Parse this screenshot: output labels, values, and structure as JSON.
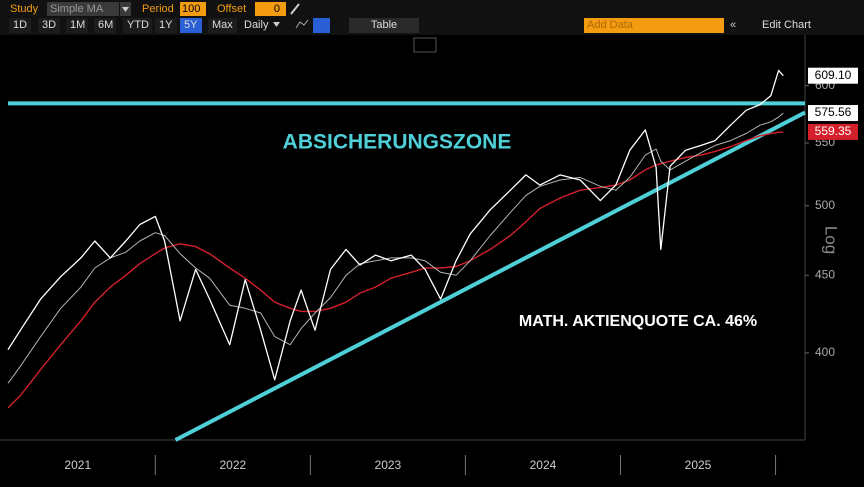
{
  "toolbar": {
    "study_label": "Study",
    "study": "Simple MA",
    "period_label": "Period",
    "period": "100",
    "offset_label": "Offset",
    "offset": "0",
    "ranges": [
      "1D",
      "3D",
      "1M",
      "6M",
      "YTD",
      "1Y",
      "5Y",
      "Max"
    ],
    "active_range": "5Y",
    "frequency": "Daily",
    "table": "Table",
    "add_data": "Add Data",
    "edit_chart": "Edit Chart"
  },
  "chart_data": {
    "type": "line",
    "log_scale": true,
    "grid": false,
    "scale_label": "Log",
    "x": [
      2021.05,
      2021.13,
      2021.26,
      2021.39,
      2021.52,
      2021.61,
      2021.71,
      2021.81,
      2021.9,
      2022.0,
      2022.06,
      2022.16,
      2022.26,
      2022.35,
      2022.48,
      2022.58,
      2022.68,
      2022.77,
      2022.87,
      2022.94,
      2023.03,
      2023.13,
      2023.23,
      2023.32,
      2023.42,
      2023.52,
      2023.65,
      2023.74,
      2023.84,
      2023.94,
      2024.03,
      2024.16,
      2024.29,
      2024.39,
      2024.48,
      2024.61,
      2024.74,
      2024.87,
      2024.97,
      2025.06,
      2025.16,
      2025.23,
      2025.26,
      2025.32,
      2025.42,
      2025.52,
      2025.61,
      2025.71,
      2025.81,
      2025.9,
      2025.97,
      2026.02,
      2026.05
    ],
    "series": [
      {
        "color": "#ffffff",
        "width": 1.3,
        "values": [
          402,
          414,
          434,
          449,
          462,
          474,
          462,
          474,
          486,
          492,
          474,
          420,
          454,
          434,
          405,
          447,
          414,
          384,
          420,
          440,
          414,
          454,
          468,
          457,
          464,
          460,
          464,
          454,
          434,
          460,
          479,
          497,
          512,
          524,
          516,
          524,
          520,
          504,
          516,
          544,
          561,
          530,
          468,
          531,
          544,
          548,
          552,
          565,
          578,
          583,
          591,
          614,
          609.1
        ]
      },
      {
        "color": "#b4b4b4",
        "width": 1,
        "values": [
          382,
          392,
          410,
          428,
          442,
          455,
          462,
          466,
          474,
          480,
          478,
          465,
          455,
          448,
          430,
          428,
          425,
          410,
          405,
          415,
          425,
          435,
          450,
          458,
          460,
          462,
          462,
          460,
          452,
          450,
          460,
          478,
          495,
          508,
          515,
          520,
          522,
          515,
          512,
          522,
          540,
          545,
          535,
          528,
          535,
          542,
          548,
          552,
          558,
          565,
          568,
          572,
          575.56
        ]
      },
      {
        "color": "#d3202b",
        "width": 1.4,
        "values": [
          368,
          375,
          390,
          405,
          420,
          432,
          442,
          450,
          458,
          465,
          469,
          472,
          470,
          465,
          455,
          448,
          440,
          432,
          428,
          426,
          426,
          428,
          432,
          438,
          442,
          448,
          452,
          455,
          455,
          456,
          460,
          468,
          478,
          488,
          498,
          506,
          512,
          514,
          516,
          520,
          528,
          532,
          533,
          535,
          538,
          540,
          543,
          547,
          552,
          556,
          558,
          559,
          559.35
        ]
      }
    ],
    "end_labels": [
      {
        "value": 609.1,
        "label": "609.10"
      },
      {
        "value": 575.56,
        "label": "575.56"
      },
      {
        "value": 559.35,
        "label": "559.35"
      }
    ],
    "reference_lines": [
      {
        "color": "#4fd0d8",
        "x": [
          2021.05,
          2026.19
        ],
        "values": [
          584,
          584
        ]
      },
      {
        "color": "#4fd0d8",
        "x": [
          2022.13,
          2026.19
        ],
        "values": [
          350.5,
          576
        ]
      }
    ],
    "annotations": [
      "ABSICHERUNGSZONE",
      "MATH. AKTIENQUOTE CA. 46%"
    ],
    "xlim": [
      2021.05,
      2026.19
    ],
    "xticks": [
      2022,
      2023,
      2024,
      2025,
      2026
    ],
    "xlabels": [
      {
        "value": 2021.5,
        "label": "2021"
      },
      {
        "value": 2022.5,
        "label": "2022"
      },
      {
        "value": 2023.5,
        "label": "2023"
      },
      {
        "value": 2024.5,
        "label": "2024"
      },
      {
        "value": 2025.5,
        "label": "2025"
      }
    ],
    "ylim": [
      350.5,
      643
    ],
    "yticks": [
      400,
      450,
      500,
      550,
      600
    ]
  }
}
